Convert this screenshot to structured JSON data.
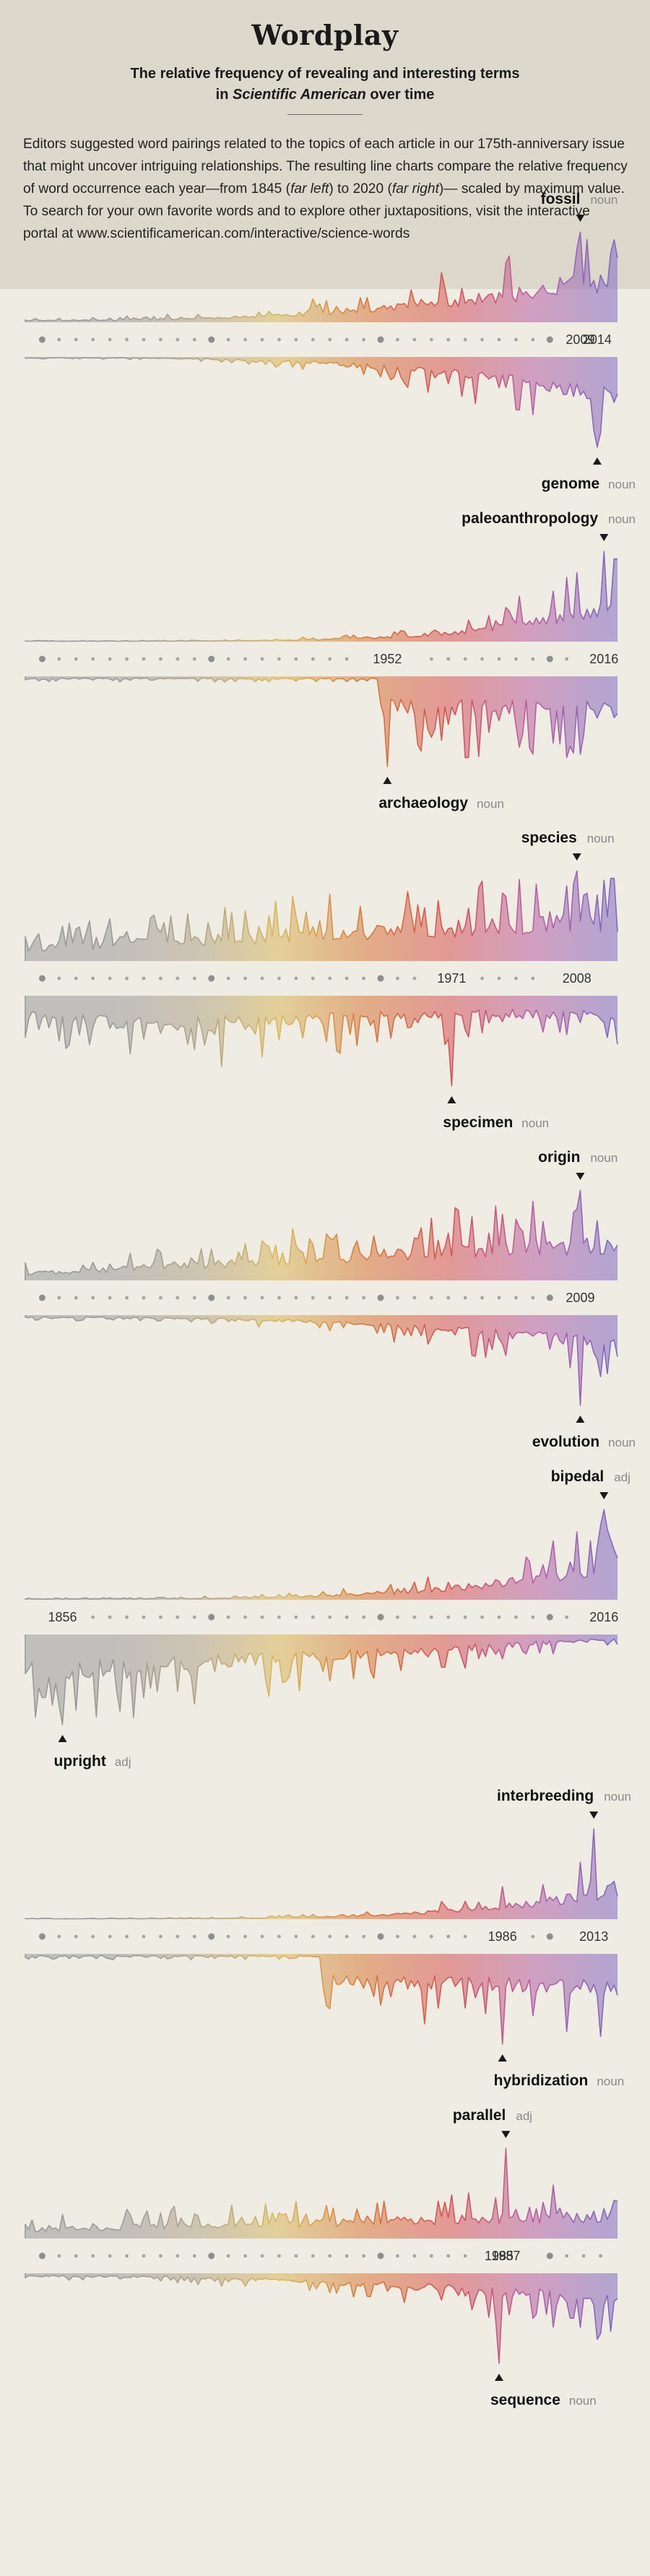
{
  "header": {
    "title": "Wordplay",
    "subtitle_line1": "The relative frequency of revealing and interesting terms",
    "subtitle_in": "in ",
    "subtitle_em": "Scientific American",
    "subtitle_end": " over time",
    "intro_1": "Editors suggested word pairings related to the topics of each article in our 175th-anniversary issue that might uncover intriguing relationships. The resulting line charts compare the relative frequency of word occurrence each year—from 1845 (",
    "intro_far_left": "far left",
    "intro_2": ") to 2020 (",
    "intro_far_right": "far right",
    "intro_3": ")— scaled by maximum value. To search for your own favorite words and to explore other juxtapositions, visit the interactive portal at www.scientificamerican.com/interactive/science-words"
  },
  "colors": {
    "background": "#efece4",
    "header_bg": "#dcd9cc",
    "ramp": [
      "#9a9a9a",
      "#9a9a9a",
      "#b0a38a",
      "#d9b85c",
      "#d77a3a",
      "#d65555",
      "#b860a3",
      "#7d6bc2"
    ]
  },
  "chart_data": [
    {
      "type": "line",
      "x_range": [
        1845,
        2020
      ],
      "seed": 11,
      "top": {
        "word": "fossil",
        "pos": "noun",
        "peak_year": 2009
      },
      "bottom": {
        "word": "genome",
        "pos": "noun",
        "peak_year": 2014
      },
      "axis_years": [
        2009,
        2014
      ]
    },
    {
      "type": "line",
      "x_range": [
        1845,
        2020
      ],
      "seed": 23,
      "top": {
        "word": "paleoanthropology",
        "pos": "noun",
        "peak_year": 2016
      },
      "bottom": {
        "word": "archaeology",
        "pos": "noun",
        "peak_year": 1952
      },
      "axis_years": [
        1952,
        2016
      ]
    },
    {
      "type": "line",
      "x_range": [
        1845,
        2020
      ],
      "seed": 37,
      "top": {
        "word": "species",
        "pos": "noun",
        "peak_year": 2008
      },
      "bottom": {
        "word": "specimen",
        "pos": "noun",
        "peak_year": 1971
      },
      "axis_years": [
        1971,
        2008
      ]
    },
    {
      "type": "line",
      "x_range": [
        1845,
        2020
      ],
      "seed": 41,
      "top": {
        "word": "origin",
        "pos": "noun",
        "peak_year": 2009
      },
      "bottom": {
        "word": "evolution",
        "pos": "noun",
        "peak_year": 2009
      },
      "axis_years": [
        2009
      ]
    },
    {
      "type": "line",
      "x_range": [
        1845,
        2020
      ],
      "seed": 53,
      "top": {
        "word": "bipedal",
        "pos": "adj",
        "peak_year": 2016
      },
      "bottom": {
        "word": "upright",
        "pos": "adj",
        "peak_year": 1856
      },
      "axis_years": [
        1856,
        2016
      ]
    },
    {
      "type": "line",
      "x_range": [
        1845,
        2020
      ],
      "seed": 67,
      "top": {
        "word": "interbreeding",
        "pos": "noun",
        "peak_year": 2013
      },
      "bottom": {
        "word": "hybridization",
        "pos": "noun",
        "peak_year": 1986
      },
      "axis_years": [
        1986,
        2013
      ]
    },
    {
      "type": "line",
      "x_range": [
        1845,
        2020
      ],
      "seed": 79,
      "top": {
        "word": "parallel",
        "pos": "adj",
        "peak_year": 1987
      },
      "bottom": {
        "word": "sequence",
        "pos": "noun",
        "peak_year": 1985
      },
      "axis_years": [
        1985,
        1987
      ]
    }
  ]
}
